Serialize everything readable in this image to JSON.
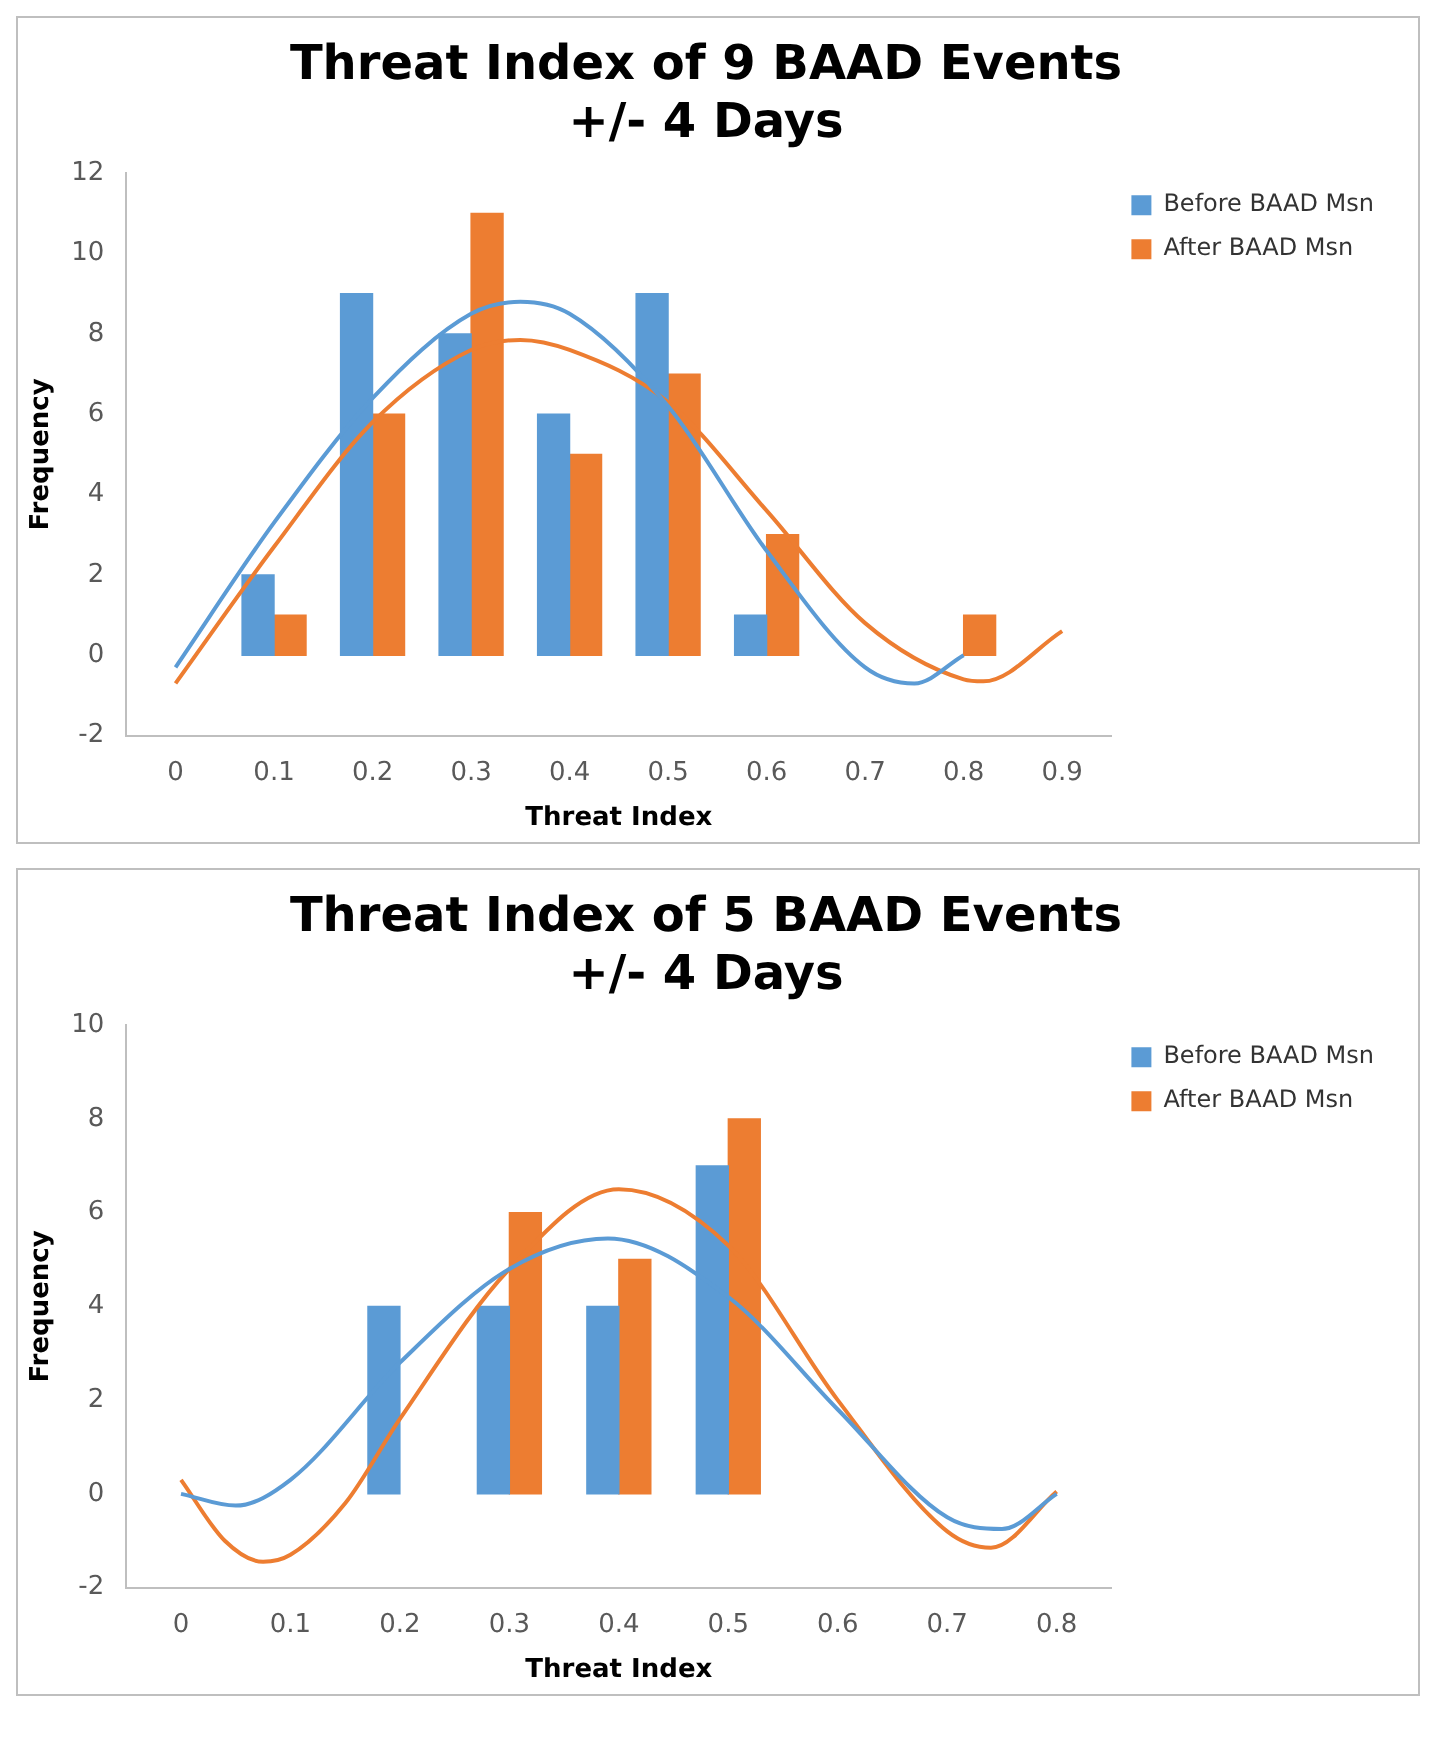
{
  "chart_data": [
    {
      "type": "bar",
      "title": "Threat Index of 9 BAAD Events\n+/- 4 Days",
      "xlabel": "Threat Index",
      "ylabel": "Frequency",
      "x": [
        0.1,
        0.2,
        0.3,
        0.4,
        0.5,
        0.6,
        0.7,
        0.8
      ],
      "xlim": [
        -0.05,
        0.95
      ],
      "xticks": [
        0,
        0.1,
        0.2,
        0.3,
        0.4,
        0.5,
        0.6,
        0.7,
        0.8,
        0.9
      ],
      "ylim": [
        -2,
        12
      ],
      "yticks": [
        -2,
        0,
        2,
        4,
        6,
        8,
        10,
        12
      ],
      "grid": false,
      "legend": "top right",
      "series": [
        {
          "name": "Before BAAD Msn",
          "color": "#5b9bd5",
          "values": [
            2,
            9,
            8,
            6,
            9,
            1,
            null,
            null
          ]
        },
        {
          "name": "After BAAD Msn",
          "color": "#ed7d31",
          "values": [
            1,
            6,
            11,
            5,
            7,
            3,
            null,
            1
          ]
        },
        {
          "type": "line",
          "color": "#5b9bd5",
          "x": [
            0,
            0.1,
            0.2,
            0.3,
            0.35,
            0.4,
            0.5,
            0.6,
            0.7,
            0.75,
            0.8
          ],
          "values": [
            -0.3,
            3.3,
            6.4,
            8.5,
            8.8,
            8.5,
            6.2,
            2.6,
            -0.3,
            -0.7,
            0
          ]
        },
        {
          "type": "line",
          "color": "#ed7d31",
          "x": [
            0,
            0.1,
            0.2,
            0.3,
            0.35,
            0.4,
            0.5,
            0.6,
            0.7,
            0.8,
            0.82,
            0.9
          ],
          "values": [
            -0.7,
            2.7,
            5.8,
            7.6,
            7.85,
            7.6,
            6.3,
            3.6,
            0.8,
            -0.6,
            -0.65,
            0.6
          ]
        }
      ]
    },
    {
      "type": "bar",
      "title": "Threat Index of 5 BAAD Events\n+/- 4 Days",
      "xlabel": "Threat Index",
      "ylabel": "Frequency",
      "x": [
        0.2,
        0.3,
        0.4,
        0.5
      ],
      "xlim": [
        -0.05,
        0.85
      ],
      "xticks": [
        0,
        0.1,
        0.2,
        0.3,
        0.4,
        0.5,
        0.6,
        0.7,
        0.8
      ],
      "ylim": [
        -2,
        10
      ],
      "yticks": [
        -2,
        0,
        2,
        4,
        6,
        8,
        10
      ],
      "grid": false,
      "legend": "top right",
      "series": [
        {
          "name": "Before BAAD Msn",
          "color": "#5b9bd5",
          "values": [
            4,
            4,
            4,
            7
          ]
        },
        {
          "name": "After BAAD Msn",
          "color": "#ed7d31",
          "values": [
            null,
            6,
            5,
            8
          ]
        },
        {
          "type": "line",
          "color": "#5b9bd5",
          "x": [
            0,
            0.05,
            0.1,
            0.2,
            0.3,
            0.39,
            0.5,
            0.6,
            0.7,
            0.75,
            0.8
          ],
          "values": [
            0,
            -0.25,
            0.3,
            2.8,
            4.8,
            5.45,
            4.2,
            1.8,
            -0.5,
            -0.75,
            0
          ]
        },
        {
          "type": "line",
          "color": "#ed7d31",
          "x": [
            0,
            0.04,
            0.075,
            0.1,
            0.15,
            0.2,
            0.3,
            0.4,
            0.5,
            0.6,
            0.7,
            0.74,
            0.8
          ],
          "values": [
            0.3,
            -1.0,
            -1.45,
            -1.3,
            -0.2,
            1.6,
            4.8,
            6.5,
            5.3,
            2.0,
            -0.8,
            -1.15,
            0.05
          ]
        }
      ]
    }
  ]
}
